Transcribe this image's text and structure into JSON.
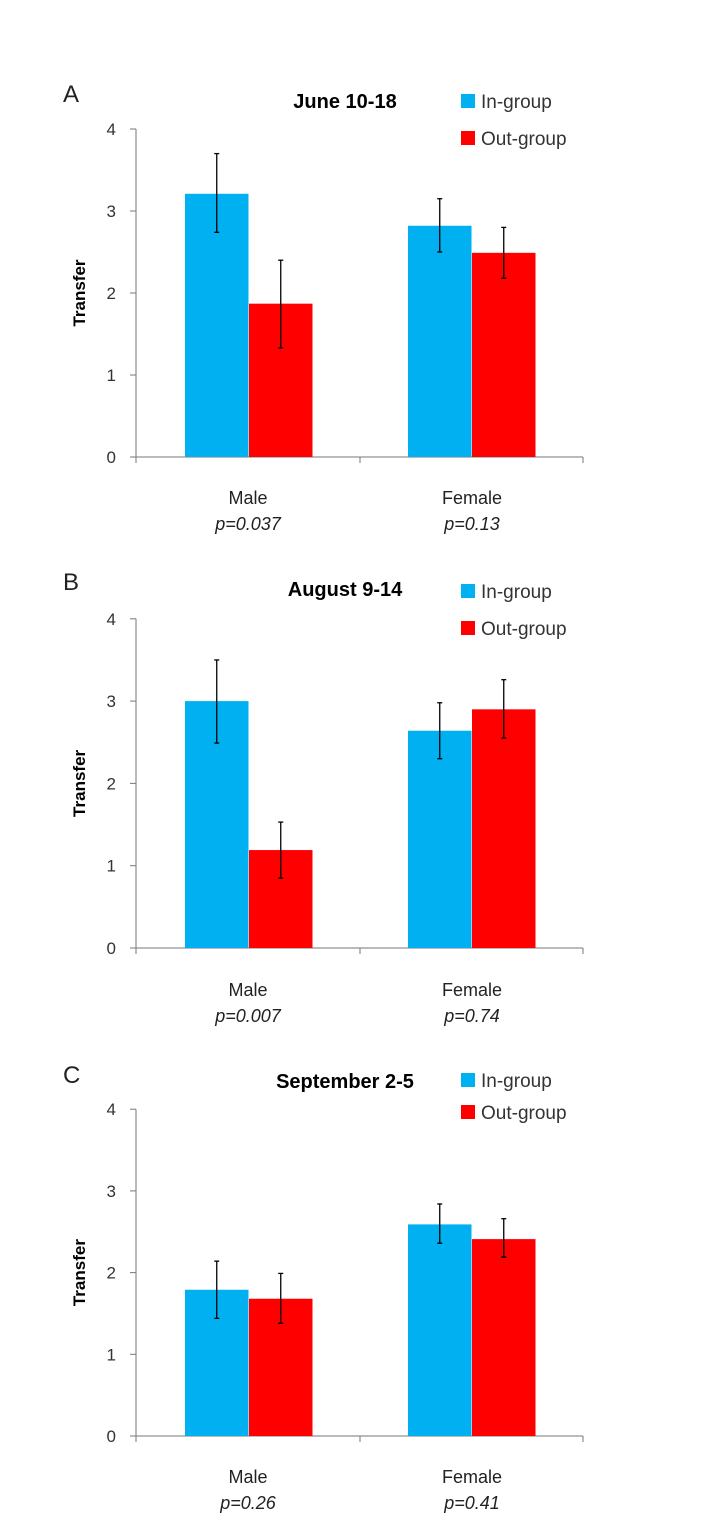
{
  "chart_data": [
    {
      "type": "bar",
      "panel": "A",
      "title": "June 10-18",
      "ylabel": "Transfer",
      "xlabel": "",
      "ylim": [
        0,
        4
      ],
      "yticks": [
        "0",
        "1",
        "2",
        "3",
        "4"
      ],
      "categories": [
        "Male",
        "Female"
      ],
      "category_notes": [
        "p=0.037",
        "p=0.13"
      ],
      "series": [
        {
          "name": "In-group",
          "color": "#00b0f0",
          "values": [
            3.21,
            2.82
          ],
          "error": [
            [
              2.74,
              3.7
            ],
            [
              2.5,
              3.15
            ]
          ]
        },
        {
          "name": "Out-group",
          "color": "#ff0000",
          "values": [
            1.87,
            2.49
          ],
          "error": [
            [
              1.33,
              2.4
            ],
            [
              2.18,
              2.8
            ]
          ]
        }
      ],
      "legend": "top-right",
      "grid": false
    },
    {
      "type": "bar",
      "panel": "B",
      "title": "August 9-14",
      "ylabel": "Transfer",
      "xlabel": "",
      "ylim": [
        0,
        4
      ],
      "yticks": [
        "0",
        "1",
        "2",
        "3",
        "4"
      ],
      "categories": [
        "Male",
        "Female"
      ],
      "category_notes": [
        "p=0.007",
        "p=0.74"
      ],
      "series": [
        {
          "name": "In-group",
          "color": "#00b0f0",
          "values": [
            3.0,
            2.64
          ],
          "error": [
            [
              2.49,
              3.5
            ],
            [
              2.3,
              2.98
            ]
          ]
        },
        {
          "name": "Out-group",
          "color": "#ff0000",
          "values": [
            1.19,
            2.9
          ],
          "error": [
            [
              0.85,
              1.53
            ],
            [
              2.55,
              3.26
            ]
          ]
        }
      ],
      "legend": "top-right",
      "grid": false
    },
    {
      "type": "bar",
      "panel": "C",
      "title": "September 2-5",
      "ylabel": "Transfer",
      "xlabel": "",
      "ylim": [
        0,
        4
      ],
      "yticks": [
        "0",
        "1",
        "2",
        "3",
        "4"
      ],
      "categories": [
        "Male",
        "Female"
      ],
      "category_notes": [
        "p=0.26",
        "p=0.41"
      ],
      "series": [
        {
          "name": "In-group",
          "color": "#00b0f0",
          "values": [
            1.79,
            2.59
          ],
          "error": [
            [
              1.44,
              2.14
            ],
            [
              2.36,
              2.84
            ]
          ]
        },
        {
          "name": "Out-group",
          "color": "#ff0000",
          "values": [
            1.68,
            2.41
          ],
          "error": [
            [
              1.38,
              1.99
            ],
            [
              2.19,
              2.66
            ]
          ]
        }
      ],
      "legend": "top-right",
      "grid": false
    }
  ]
}
